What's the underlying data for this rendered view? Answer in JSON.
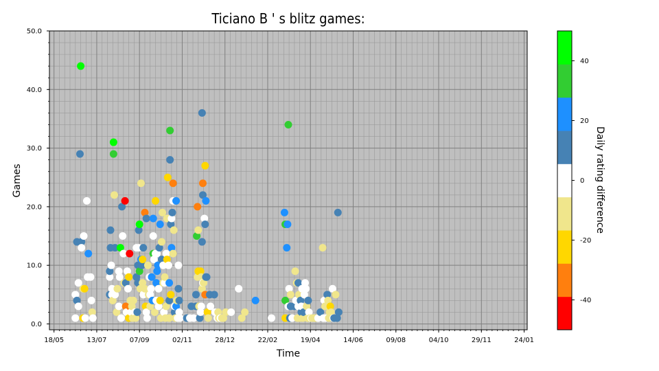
{
  "chart_data": {
    "type": "scatter",
    "title": "Ticiano B ' s  blitz games:",
    "xlabel": "Time",
    "ylabel": "Games",
    "ylim": [
      -1,
      50
    ],
    "yticks": [
      "0.0",
      "10.0",
      "20.0",
      "30.0",
      "40.0",
      "50.0"
    ],
    "xticks": [
      "18/05",
      "13/07",
      "07/09",
      "02/11",
      "28/12",
      "22/02",
      "19/04",
      "14/06",
      "09/08",
      "04/10",
      "29/11",
      "24/01"
    ],
    "xlim_days": [
      -6,
      620
    ],
    "tick_interval_days": 56,
    "grid": true,
    "colorbar": {
      "label": "Daily rating difference",
      "range": [
        -50,
        50
      ],
      "ticks": [
        "-40",
        "-20",
        "0",
        "20",
        "40"
      ],
      "colors": [
        "#ff0000",
        "#ff7f0e",
        "#ffd700",
        "#f0e68c",
        "#ffffff",
        "#4682b4",
        "#1e90ff",
        "#32cd32",
        "#00ff00"
      ]
    },
    "colors": {
      "red": "#ff0000",
      "orange": "#ff7f0e",
      "gold": "#ffd700",
      "khaki": "#f0e68c",
      "white": "#ffffff",
      "steel": "#4682b4",
      "blue": "#1e90ff",
      "green": "#32cd32",
      "lime": "#00ff00"
    },
    "points": [
      [
        28,
        1,
        "white"
      ],
      [
        28,
        5,
        "white"
      ],
      [
        30,
        14,
        "steel"
      ],
      [
        30,
        4,
        "steel"
      ],
      [
        32,
        7,
        "white"
      ],
      [
        32,
        3,
        "white"
      ],
      [
        34,
        29,
        "steel"
      ],
      [
        35,
        44,
        "lime"
      ],
      [
        36,
        14,
        "steel"
      ],
      [
        36,
        13,
        "white"
      ],
      [
        38,
        1,
        "gold"
      ],
      [
        38,
        6,
        "khaki"
      ],
      [
        39,
        15,
        "white"
      ],
      [
        40,
        6,
        "gold"
      ],
      [
        41,
        1,
        "white"
      ],
      [
        43,
        21,
        "white"
      ],
      [
        44,
        8,
        "white"
      ],
      [
        45,
        12,
        "blue"
      ],
      [
        48,
        8,
        "white"
      ],
      [
        49,
        4,
        "white"
      ],
      [
        50,
        2,
        "khaki"
      ],
      [
        51,
        1,
        "white"
      ],
      [
        73,
        5,
        "steel"
      ],
      [
        73,
        8,
        "white"
      ],
      [
        73,
        9,
        "steel"
      ],
      [
        74,
        13,
        "steel"
      ],
      [
        74,
        16,
        "steel"
      ],
      [
        75,
        10,
        "white"
      ],
      [
        76,
        5,
        "white"
      ],
      [
        76,
        6,
        "white"
      ],
      [
        77,
        4,
        "khaki"
      ],
      [
        78,
        29,
        "green"
      ],
      [
        78,
        31,
        "lime"
      ],
      [
        79,
        22,
        "khaki"
      ],
      [
        80,
        13,
        "steel"
      ],
      [
        80,
        5,
        "white"
      ],
      [
        82,
        2,
        "khaki"
      ],
      [
        83,
        6,
        "khaki"
      ],
      [
        85,
        3,
        "white"
      ],
      [
        85,
        9,
        "white"
      ],
      [
        86,
        8,
        "white"
      ],
      [
        87,
        13,
        "lime"
      ],
      [
        88,
        1,
        "white"
      ],
      [
        89,
        20,
        "steel"
      ],
      [
        90,
        15,
        "white"
      ],
      [
        91,
        12,
        "white"
      ],
      [
        92,
        7,
        "khaki"
      ],
      [
        93,
        21,
        "red"
      ],
      [
        94,
        3,
        "orange"
      ],
      [
        94,
        7,
        "steel"
      ],
      [
        95,
        2,
        "white"
      ],
      [
        96,
        9,
        "white"
      ],
      [
        97,
        6,
        "white"
      ],
      [
        98,
        1,
        "gold"
      ],
      [
        98,
        8,
        "gold"
      ],
      [
        99,
        12,
        "red"
      ],
      [
        99,
        3,
        "orange"
      ],
      [
        100,
        4,
        "khaki"
      ],
      [
        101,
        2,
        "white"
      ],
      [
        102,
        3,
        "khaki"
      ],
      [
        103,
        1,
        "khaki"
      ],
      [
        104,
        4,
        "khaki"
      ],
      [
        106,
        2,
        "white"
      ],
      [
        107,
        1,
        "khaki"
      ],
      [
        108,
        13,
        "white"
      ],
      [
        108,
        8,
        "steel"
      ],
      [
        109,
        2,
        "steel"
      ],
      [
        110,
        7,
        "steel"
      ],
      [
        110,
        10,
        "steel"
      ],
      [
        111,
        13,
        "white"
      ],
      [
        111,
        16,
        "steel"
      ],
      [
        112,
        17,
        "lime"
      ],
      [
        112,
        9,
        "green"
      ],
      [
        113,
        6,
        "khaki"
      ],
      [
        114,
        24,
        "khaki"
      ],
      [
        114,
        11,
        "blue"
      ],
      [
        115,
        10,
        "steel"
      ],
      [
        116,
        11,
        "gold"
      ],
      [
        116,
        7,
        "khaki"
      ],
      [
        117,
        13,
        "steel"
      ],
      [
        117,
        5,
        "white"
      ],
      [
        119,
        6,
        "khaki"
      ],
      [
        119,
        19,
        "orange"
      ],
      [
        120,
        3,
        "gold"
      ],
      [
        121,
        18,
        "steel"
      ],
      [
        121,
        2,
        "white"
      ],
      [
        122,
        1,
        "white"
      ],
      [
        123,
        10,
        "khaki"
      ],
      [
        124,
        5,
        "khaki"
      ],
      [
        125,
        8,
        "white"
      ],
      [
        126,
        5,
        "white"
      ],
      [
        126,
        3,
        "khaki"
      ],
      [
        127,
        6,
        "white"
      ],
      [
        128,
        8,
        "blue"
      ],
      [
        129,
        4,
        "blue"
      ],
      [
        130,
        12,
        "green"
      ],
      [
        130,
        15,
        "white"
      ],
      [
        130,
        18,
        "blue"
      ],
      [
        131,
        11,
        "white"
      ],
      [
        132,
        2,
        "khaki"
      ],
      [
        133,
        21,
        "gold"
      ],
      [
        133,
        12,
        "white"
      ],
      [
        134,
        7,
        "blue"
      ],
      [
        134,
        4,
        "white"
      ],
      [
        135,
        9,
        "blue"
      ],
      [
        135,
        12,
        "white"
      ],
      [
        136,
        10,
        "blue"
      ],
      [
        137,
        6,
        "white"
      ],
      [
        137,
        3,
        "white"
      ],
      [
        138,
        13,
        "steel"
      ],
      [
        139,
        17,
        "blue"
      ],
      [
        139,
        4,
        "gold"
      ],
      [
        140,
        1,
        "khaki"
      ],
      [
        141,
        14,
        "khaki"
      ],
      [
        141,
        11,
        "steel"
      ],
      [
        142,
        19,
        "khaki"
      ],
      [
        143,
        7,
        "khaki"
      ],
      [
        143,
        10,
        "white"
      ],
      [
        144,
        2,
        "white"
      ],
      [
        145,
        7,
        "white"
      ],
      [
        145,
        8,
        "khaki"
      ],
      [
        146,
        1,
        "khaki"
      ],
      [
        147,
        12,
        "white"
      ],
      [
        147,
        3,
        "khaki"
      ],
      [
        148,
        18,
        "khaki"
      ],
      [
        148,
        11,
        "gold"
      ],
      [
        149,
        25,
        "gold"
      ],
      [
        150,
        10,
        "white"
      ],
      [
        151,
        1,
        "khaki"
      ],
      [
        151,
        4,
        "steel"
      ],
      [
        151,
        7,
        "blue"
      ],
      [
        152,
        33,
        "green"
      ],
      [
        152,
        28,
        "steel"
      ],
      [
        153,
        5,
        "gold"
      ],
      [
        153,
        17,
        "steel"
      ],
      [
        154,
        13,
        "blue"
      ],
      [
        154,
        18,
        "white"
      ],
      [
        155,
        19,
        "steel"
      ],
      [
        156,
        24,
        "orange"
      ],
      [
        156,
        12,
        "khaki"
      ],
      [
        156,
        21,
        "white"
      ],
      [
        157,
        16,
        "khaki"
      ],
      [
        158,
        2,
        "steel"
      ],
      [
        158,
        3,
        "white"
      ],
      [
        159,
        1,
        "khaki"
      ],
      [
        160,
        3,
        "blue"
      ],
      [
        160,
        21,
        "blue"
      ],
      [
        161,
        4,
        "khaki"
      ],
      [
        162,
        1,
        "white"
      ],
      [
        163,
        10,
        "white"
      ],
      [
        163,
        6,
        "steel"
      ],
      [
        164,
        2,
        "white"
      ],
      [
        164,
        4,
        "steel"
      ],
      [
        165,
        1,
        "white"
      ],
      [
        174,
        1,
        "steel"
      ],
      [
        178,
        1,
        "white"
      ],
      [
        180,
        3,
        "steel"
      ],
      [
        183,
        1,
        "white"
      ],
      [
        186,
        5,
        "steel"
      ],
      [
        186,
        3,
        "steel"
      ],
      [
        187,
        15,
        "green"
      ],
      [
        188,
        20,
        "orange"
      ],
      [
        188,
        8,
        "khaki"
      ],
      [
        189,
        9,
        "gold"
      ],
      [
        189,
        16,
        "khaki"
      ],
      [
        190,
        3,
        "khaki"
      ],
      [
        191,
        1,
        "steel"
      ],
      [
        192,
        9,
        "gold"
      ],
      [
        192,
        2,
        "white"
      ],
      [
        193,
        8,
        "khaki"
      ],
      [
        193,
        3,
        "white"
      ],
      [
        194,
        14,
        "steel"
      ],
      [
        194,
        36,
        "steel"
      ],
      [
        194,
        6,
        "khaki"
      ],
      [
        195,
        22,
        "steel"
      ],
      [
        195,
        24,
        "orange"
      ],
      [
        195,
        7,
        "white"
      ],
      [
        196,
        7,
        "khaki"
      ],
      [
        197,
        18,
        "white"
      ],
      [
        198,
        17,
        "steel"
      ],
      [
        198,
        27,
        "gold"
      ],
      [
        198,
        5,
        "orange"
      ],
      [
        199,
        21,
        "blue"
      ],
      [
        199,
        8,
        "steel"
      ],
      [
        200,
        8,
        "steel"
      ],
      [
        201,
        2,
        "gold"
      ],
      [
        202,
        1,
        "khaki"
      ],
      [
        204,
        5,
        "steel"
      ],
      [
        205,
        3,
        "white"
      ],
      [
        210,
        5,
        "steel"
      ],
      [
        211,
        2,
        "white"
      ],
      [
        214,
        1,
        "white"
      ],
      [
        215,
        2,
        "khaki"
      ],
      [
        216,
        1,
        "khaki"
      ],
      [
        218,
        1,
        "white"
      ],
      [
        220,
        1,
        "khaki"
      ],
      [
        222,
        1,
        "khaki"
      ],
      [
        225,
        2,
        "khaki"
      ],
      [
        232,
        2,
        "white"
      ],
      [
        242,
        6,
        "white"
      ],
      [
        246,
        1,
        "khaki"
      ],
      [
        250,
        2,
        "khaki"
      ],
      [
        264,
        4,
        "blue"
      ],
      [
        285,
        1,
        "white"
      ],
      [
        302,
        19,
        "blue"
      ],
      [
        303,
        17,
        "green"
      ],
      [
        303,
        4,
        "green"
      ],
      [
        303,
        1,
        "gold"
      ],
      [
        305,
        13,
        "blue"
      ],
      [
        306,
        17,
        "blue"
      ],
      [
        307,
        34,
        "green"
      ],
      [
        307,
        3,
        "white"
      ],
      [
        308,
        6,
        "white"
      ],
      [
        309,
        1,
        "steel"
      ],
      [
        310,
        3,
        "steel"
      ],
      [
        310,
        5,
        "khaki"
      ],
      [
        312,
        1,
        "white"
      ],
      [
        315,
        3,
        "steel"
      ],
      [
        316,
        9,
        "khaki"
      ],
      [
        317,
        4,
        "white"
      ],
      [
        318,
        7,
        "khaki"
      ],
      [
        319,
        1,
        "khaki"
      ],
      [
        320,
        7,
        "steel"
      ],
      [
        320,
        3,
        "white"
      ],
      [
        321,
        5,
        "khaki"
      ],
      [
        322,
        1,
        "khaki"
      ],
      [
        323,
        4,
        "steel"
      ],
      [
        324,
        2,
        "steel"
      ],
      [
        324,
        3,
        "white"
      ],
      [
        325,
        6,
        "white"
      ],
      [
        326,
        1,
        "khaki"
      ],
      [
        327,
        2,
        "steel"
      ],
      [
        328,
        5,
        "white"
      ],
      [
        329,
        7,
        "white"
      ],
      [
        330,
        6,
        "white"
      ],
      [
        331,
        3,
        "khaki"
      ],
      [
        332,
        1,
        "khaki"
      ],
      [
        333,
        4,
        "steel"
      ],
      [
        334,
        2,
        "white"
      ],
      [
        335,
        1,
        "khaki"
      ],
      [
        337,
        1,
        "white"
      ],
      [
        338,
        1,
        "khaki"
      ],
      [
        341,
        1,
        "khaki"
      ],
      [
        344,
        1,
        "khaki"
      ],
      [
        346,
        1,
        "white"
      ],
      [
        349,
        2,
        "steel"
      ],
      [
        352,
        13,
        "khaki"
      ],
      [
        353,
        1,
        "white"
      ],
      [
        354,
        4,
        "white"
      ],
      [
        355,
        3,
        "khaki"
      ],
      [
        356,
        1,
        "white"
      ],
      [
        358,
        5,
        "steel"
      ],
      [
        359,
        3,
        "khaki"
      ],
      [
        359,
        4,
        "khaki"
      ],
      [
        360,
        1,
        "khaki"
      ],
      [
        361,
        2,
        "khaki"
      ],
      [
        362,
        3,
        "gold"
      ],
      [
        363,
        2,
        "khaki"
      ],
      [
        365,
        6,
        "white"
      ],
      [
        366,
        1,
        "white"
      ],
      [
        367,
        1,
        "steel"
      ],
      [
        369,
        5,
        "khaki"
      ],
      [
        371,
        1,
        "steel"
      ],
      [
        372,
        19,
        "steel"
      ],
      [
        373,
        2,
        "steel"
      ]
    ]
  }
}
